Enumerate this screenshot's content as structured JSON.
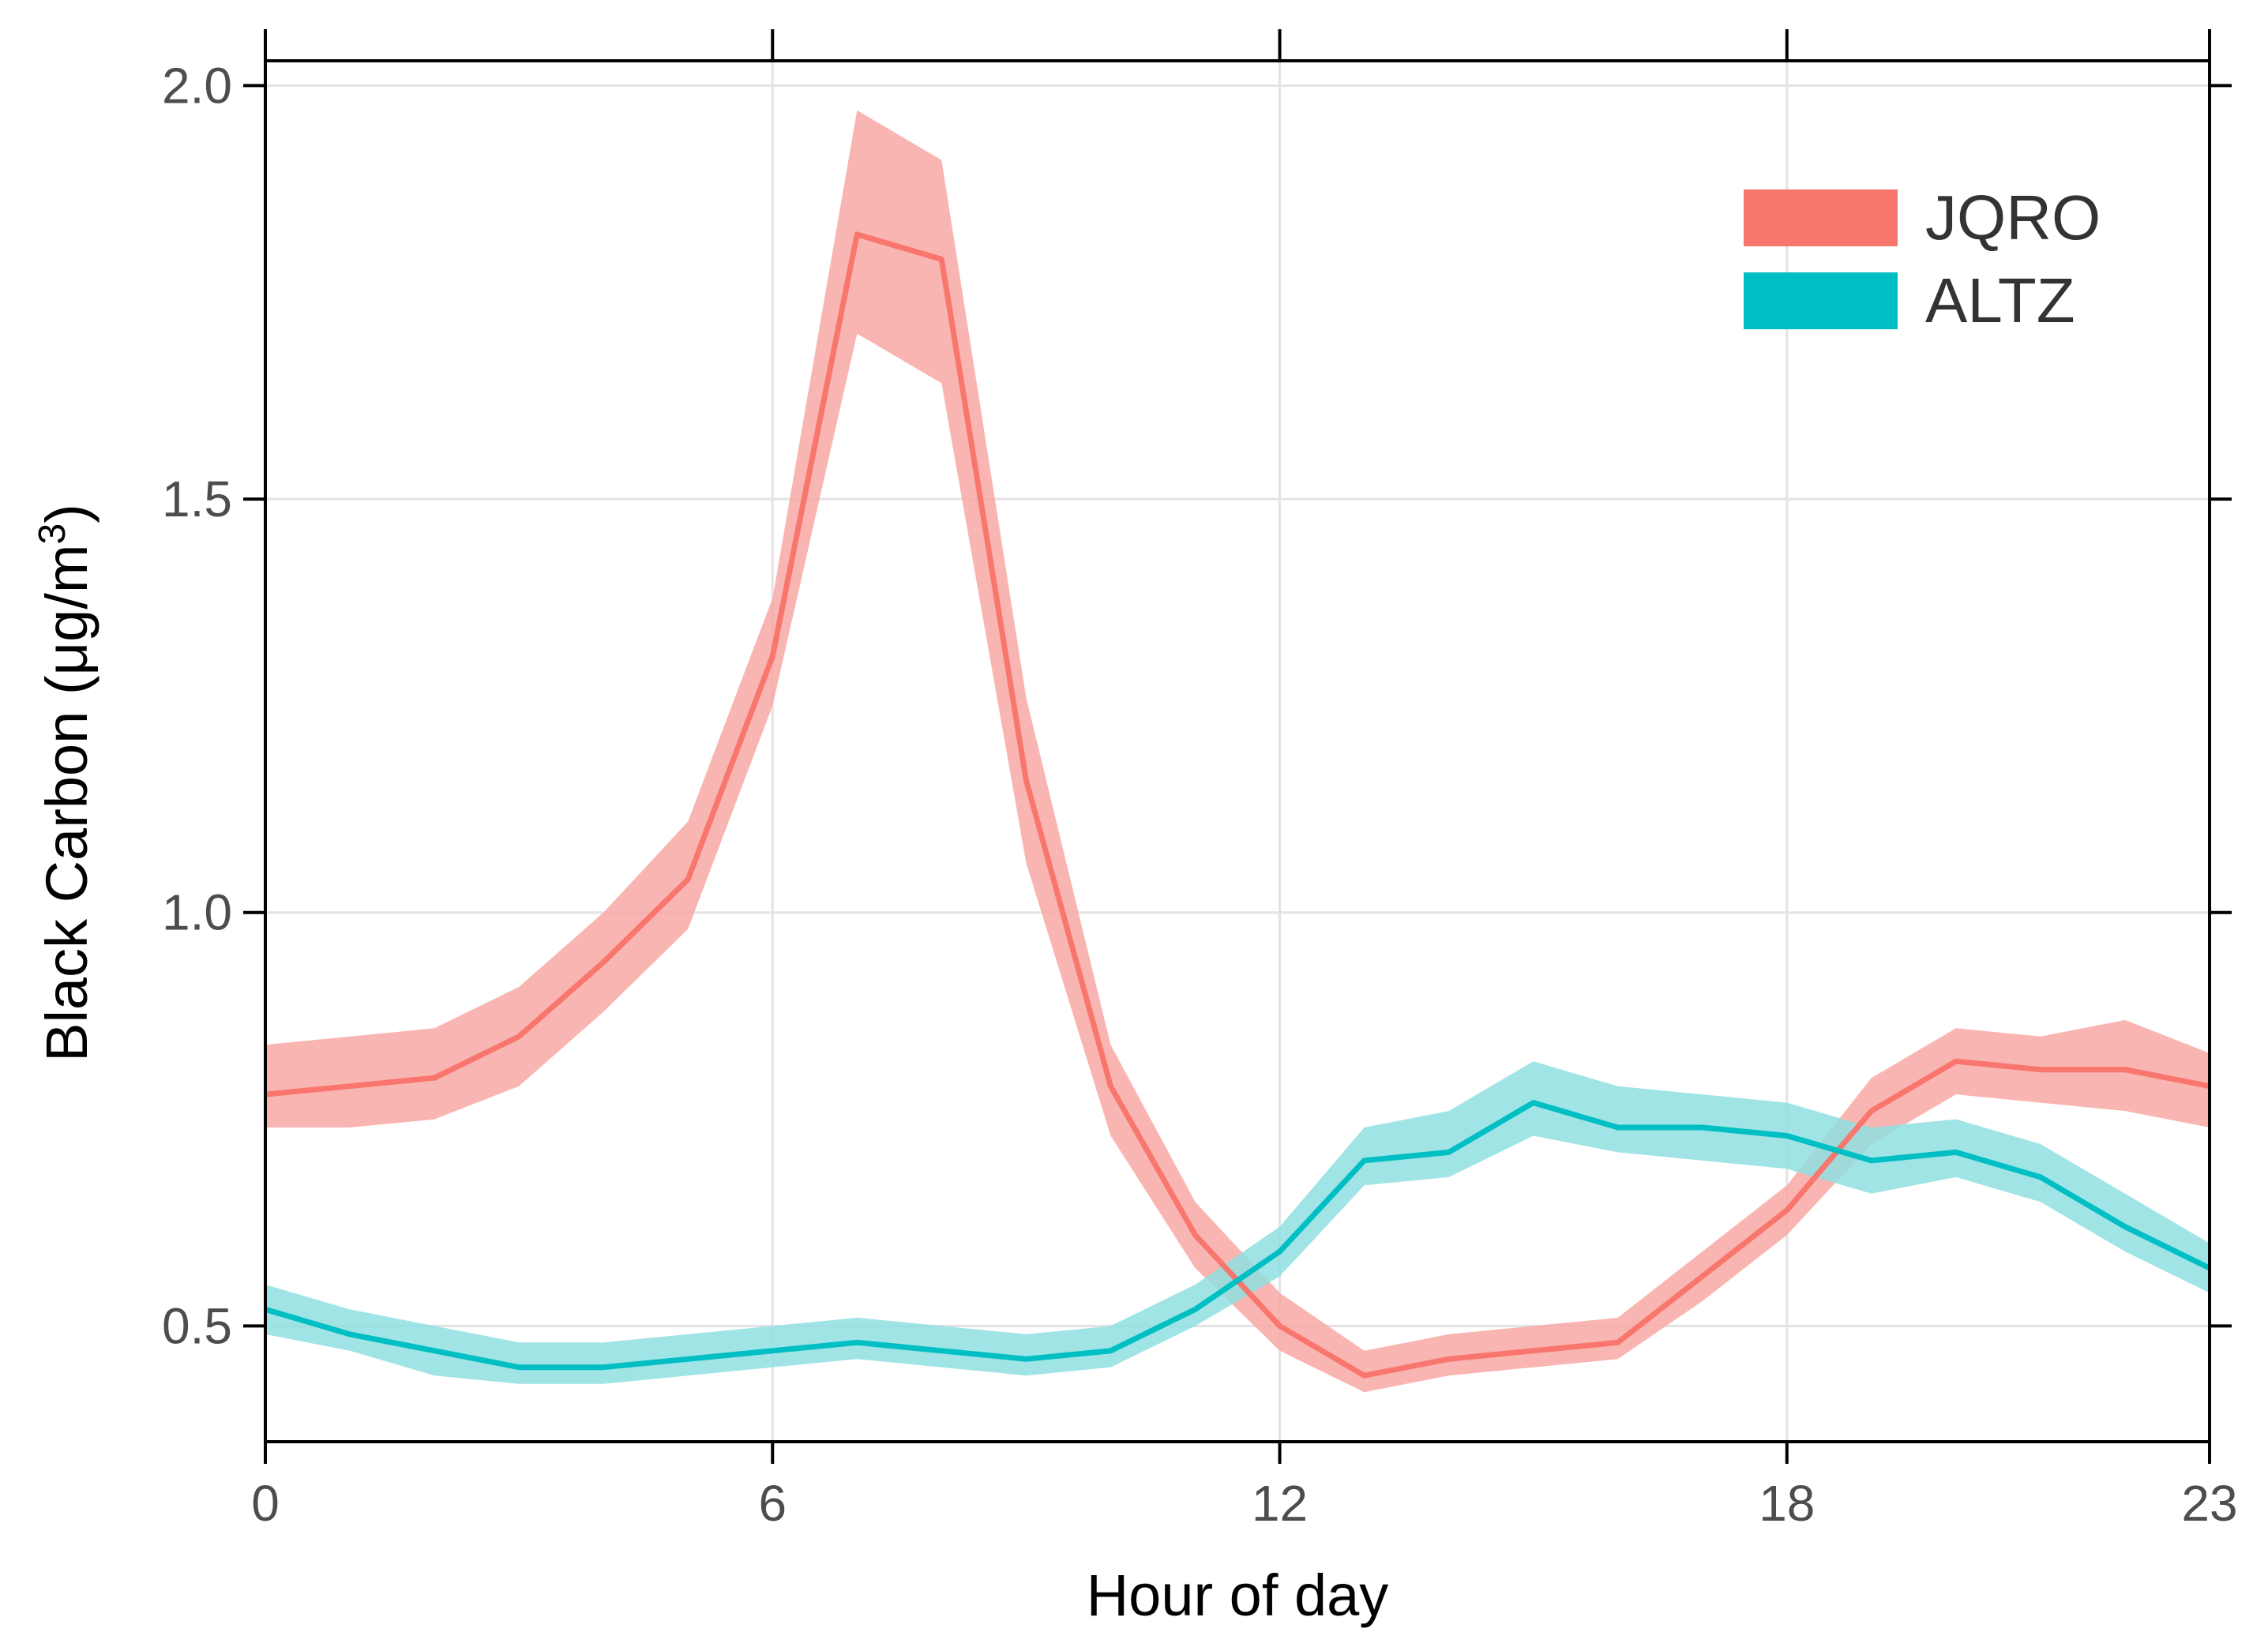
{
  "chart_data": {
    "type": "line",
    "title": "",
    "xlabel": "Hour of day",
    "ylabel": "Black Carbon (μg/m³)",
    "ylabel_parts": {
      "main": "Black Carbon (μg/m",
      "superscript": "3",
      "close": ")"
    },
    "xlim": [
      0,
      23
    ],
    "ylim": [
      0.36,
      2.03
    ],
    "grid": true,
    "legend_position": "top-right",
    "x": [
      0,
      1,
      2,
      3,
      4,
      5,
      6,
      7,
      8,
      9,
      10,
      11,
      12,
      13,
      14,
      15,
      16,
      17,
      18,
      19,
      20,
      21,
      22,
      23
    ],
    "x_ticks": [
      0,
      6,
      12,
      18,
      23
    ],
    "x_tick_labels": [
      "0",
      "6",
      "12",
      "18",
      "23"
    ],
    "y_ticks": [
      0.5,
      1.0,
      1.5,
      2.0
    ],
    "y_tick_labels": [
      "0.5",
      "1.0",
      "1.5",
      "2.0"
    ],
    "series": [
      {
        "name": "JQRO",
        "color": "#F8766D",
        "band_color": "#F8A8A3",
        "values": [
          0.78,
          0.79,
          0.8,
          0.85,
          0.94,
          1.04,
          1.31,
          1.82,
          1.79,
          1.16,
          0.79,
          0.61,
          0.5,
          0.44,
          0.46,
          0.47,
          0.48,
          0.56,
          0.64,
          0.76,
          0.82,
          0.81,
          0.81,
          0.79
        ],
        "lower": [
          0.74,
          0.74,
          0.75,
          0.79,
          0.88,
          0.98,
          1.25,
          1.7,
          1.64,
          1.06,
          0.73,
          0.57,
          0.47,
          0.42,
          0.44,
          0.45,
          0.46,
          0.53,
          0.61,
          0.72,
          0.78,
          0.77,
          0.76,
          0.74
        ],
        "upper": [
          0.84,
          0.85,
          0.86,
          0.91,
          1.0,
          1.11,
          1.38,
          1.97,
          1.91,
          1.26,
          0.84,
          0.65,
          0.54,
          0.47,
          0.49,
          0.5,
          0.51,
          0.59,
          0.67,
          0.8,
          0.86,
          0.85,
          0.87,
          0.83
        ]
      },
      {
        "name": "ALTZ",
        "color": "#00BFC4",
        "band_color": "#8FDFE1",
        "values": [
          0.52,
          0.49,
          0.47,
          0.45,
          0.45,
          0.46,
          0.47,
          0.48,
          0.47,
          0.46,
          0.47,
          0.52,
          0.59,
          0.7,
          0.71,
          0.77,
          0.74,
          0.74,
          0.73,
          0.7,
          0.71,
          0.68,
          0.62,
          0.57
        ],
        "lower": [
          0.49,
          0.47,
          0.44,
          0.43,
          0.43,
          0.44,
          0.45,
          0.46,
          0.45,
          0.44,
          0.45,
          0.5,
          0.56,
          0.67,
          0.68,
          0.73,
          0.71,
          0.7,
          0.69,
          0.66,
          0.68,
          0.65,
          0.59,
          0.54
        ],
        "upper": [
          0.55,
          0.52,
          0.5,
          0.48,
          0.48,
          0.49,
          0.5,
          0.51,
          0.5,
          0.49,
          0.5,
          0.55,
          0.62,
          0.74,
          0.76,
          0.82,
          0.79,
          0.78,
          0.77,
          0.74,
          0.75,
          0.72,
          0.66,
          0.6
        ]
      }
    ]
  }
}
